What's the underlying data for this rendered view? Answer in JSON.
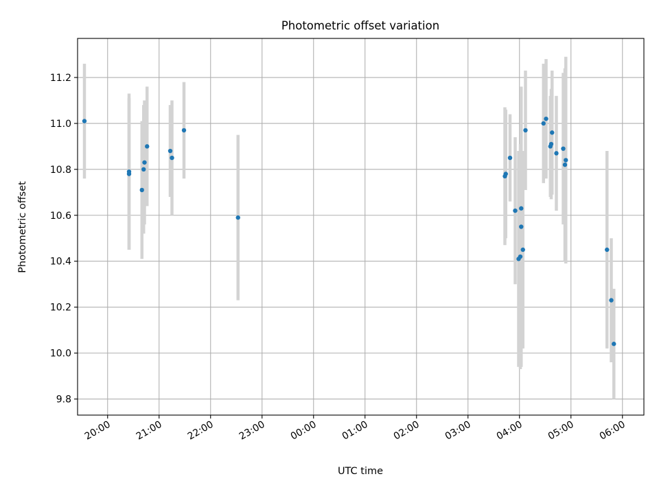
{
  "chart_data": {
    "type": "scatter",
    "title": "Photometric offset variation",
    "xlabel": "UTC time",
    "ylabel": "Photometric offset",
    "x_unit": "hours (UTC, continuing past midnight as 24+h)",
    "xlim": [
      "19:25",
      "06:25"
    ],
    "ylim": [
      9.73,
      11.37
    ],
    "x_tick_labels": [
      "20:00",
      "21:00",
      "22:00",
      "23:00",
      "00:00",
      "01:00",
      "02:00",
      "03:00",
      "04:00",
      "05:00",
      "06:00"
    ],
    "y_ticks": [
      9.8,
      10.0,
      10.2,
      10.4,
      10.6,
      10.8,
      11.0,
      11.2
    ],
    "y_tick_labels": [
      "9.8",
      "10.0",
      "10.2",
      "10.4",
      "10.6",
      "10.8",
      "11.0",
      "11.2"
    ],
    "grid": true,
    "colors": {
      "points": "#1f77b4",
      "errorbars": "#d3d3d3",
      "grid": "#b0b0b0"
    },
    "series": [
      {
        "points": [
          {
            "time": "19:33",
            "y": 11.01,
            "err": 0.25
          },
          {
            "time": "20:25",
            "y": 10.79,
            "err": 0.34
          },
          {
            "time": "20:25",
            "y": 10.78,
            "err": 0.33
          },
          {
            "time": "20:40",
            "y": 10.71,
            "err": 0.3
          },
          {
            "time": "20:42",
            "y": 10.8,
            "err": 0.28
          },
          {
            "time": "20:43",
            "y": 10.83,
            "err": 0.27
          },
          {
            "time": "20:46",
            "y": 10.9,
            "err": 0.26
          },
          {
            "time": "21:13",
            "y": 10.88,
            "err": 0.2
          },
          {
            "time": "21:15",
            "y": 10.85,
            "err": 0.25
          },
          {
            "time": "21:29",
            "y": 10.97,
            "err": 0.21
          },
          {
            "time": "22:32",
            "y": 10.59,
            "err": 0.36
          },
          {
            "time": "03:43",
            "y": 10.77,
            "err": 0.3
          },
          {
            "time": "03:44",
            "y": 10.78,
            "err": 0.28
          },
          {
            "time": "03:49",
            "y": 10.85,
            "err": 0.19
          },
          {
            "time": "03:55",
            "y": 10.62,
            "err": 0.32
          },
          {
            "time": "03:59",
            "y": 10.41,
            "err": 0.47
          },
          {
            "time": "04:01",
            "y": 10.42,
            "err": 0.49
          },
          {
            "time": "04:02",
            "y": 10.55,
            "err": 0.61
          },
          {
            "time": "04:02",
            "y": 10.63,
            "err": 0.46
          },
          {
            "time": "04:04",
            "y": 10.45,
            "err": 0.43
          },
          {
            "time": "04:07",
            "y": 10.97,
            "err": 0.26
          },
          {
            "time": "04:28",
            "y": 11.0,
            "err": 0.26
          },
          {
            "time": "04:31",
            "y": 11.02,
            "err": 0.26
          },
          {
            "time": "04:36",
            "y": 10.9,
            "err": 0.22
          },
          {
            "time": "04:37",
            "y": 10.91,
            "err": 0.24
          },
          {
            "time": "04:38",
            "y": 10.96,
            "err": 0.27
          },
          {
            "time": "04:43",
            "y": 10.87,
            "err": 0.25
          },
          {
            "time": "04:51",
            "y": 10.89,
            "err": 0.33
          },
          {
            "time": "04:53",
            "y": 10.82,
            "err": 0.42
          },
          {
            "time": "04:54",
            "y": 10.84,
            "err": 0.45
          },
          {
            "time": "05:42",
            "y": 10.45,
            "err": 0.43
          },
          {
            "time": "05:47",
            "y": 10.23,
            "err": 0.27
          },
          {
            "time": "05:50",
            "y": 10.04,
            "err": 0.24
          }
        ]
      }
    ]
  }
}
